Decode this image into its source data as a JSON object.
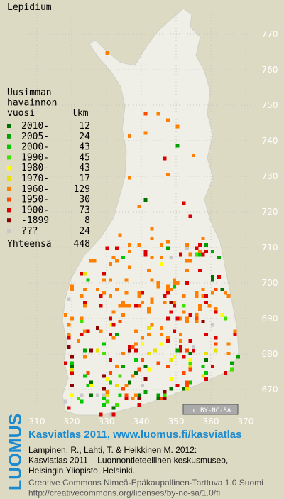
{
  "title": "Lepidium",
  "legend": {
    "heading": [
      "Uusimman",
      "havainnon",
      "vuosi"
    ],
    "count_heading": "lkm",
    "rows": [
      {
        "label": "2010-",
        "count": 12,
        "color": "#006e00"
      },
      {
        "label": "2005-",
        "count": 24,
        "color": "#00a000"
      },
      {
        "label": "2000-",
        "count": 43,
        "color": "#00c800"
      },
      {
        "label": "1990-",
        "count": 45,
        "color": "#40e000"
      },
      {
        "label": "1980-",
        "count": 43,
        "color": "#ffff00"
      },
      {
        "label": "1970-",
        "count": 17,
        "color": "#e8e000"
      },
      {
        "label": "1960-",
        "count": 129,
        "color": "#ff8000"
      },
      {
        "label": "1950-",
        "count": 30,
        "color": "#ff4800"
      },
      {
        "label": "1900-",
        "count": 73,
        "color": "#d80000"
      },
      {
        "label": "-1899",
        "count": 8,
        "color": "#8c0000"
      },
      {
        "label": "???",
        "count": 24,
        "color": "#c8c8c8"
      }
    ],
    "total_label": "Yhteensä",
    "total": 448
  },
  "grid": {
    "x_labels": [
      310,
      320,
      330,
      340,
      350,
      360,
      370
    ],
    "y_labels": [
      770,
      760,
      750,
      740,
      730,
      720,
      710,
      700,
      690,
      680,
      670
    ]
  },
  "license_badge": {
    "icon": "cc",
    "text": "BY-NC-SA"
  },
  "footer": {
    "logo": "LUOMUS",
    "headline": "Kasviatlas 2011, www.luomus.fi/kasviatlas",
    "citation": [
      "Lampinen, R., Lahti, T. & Heikkinen M. 2012:",
      "Kasviatlas 2011 – Luonnontieteellinen keskusmuseo,",
      "Helsingin Yliopisto, Helsinki."
    ],
    "license": [
      "Creative Commons Nimeä-Epäkaupallinen-Tarttuva 1.0 Suomi",
      "http://creativecommons.org/licenses/by-nc-sa/1.0/fi"
    ]
  }
}
